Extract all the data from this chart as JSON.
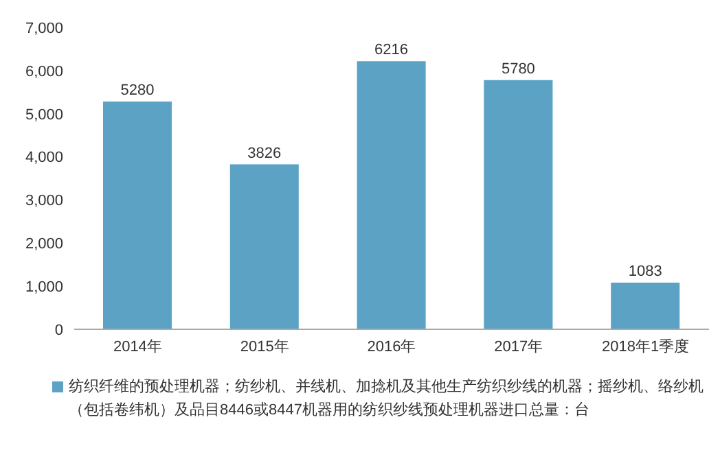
{
  "chart_data": {
    "type": "bar",
    "categories": [
      "2014年",
      "2015年",
      "2016年",
      "2017年",
      "2018年1季度"
    ],
    "series": [
      {
        "name": "纺织纤维的预处理机器；纺纱机、并线机、加捻机及其他生产纺织纱线的机器；摇纱机、络纱机（包括卷纬机）及品目8446或8447机器用的纺织纱线预处理机器进口总量：台",
        "color": "#5ba2c4",
        "values": [
          5280,
          3826,
          6216,
          5780,
          1083
        ]
      }
    ],
    "ylim": [
      0,
      7000
    ],
    "yticks": [
      {
        "value": 0,
        "label": "0"
      },
      {
        "value": 1000,
        "label": "1,000"
      },
      {
        "value": 2000,
        "label": "2,000"
      },
      {
        "value": 3000,
        "label": "3,000"
      },
      {
        "value": 4000,
        "label": "4,000"
      },
      {
        "value": 5000,
        "label": "5,000"
      },
      {
        "value": 6000,
        "label": "6,000"
      },
      {
        "value": 7000,
        "label": "7,000"
      }
    ],
    "data_labels": true,
    "legend": "bottom"
  }
}
